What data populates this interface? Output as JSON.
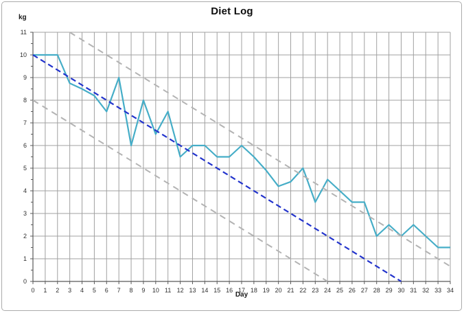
{
  "chart_data": {
    "type": "line",
    "title": "Diet Log",
    "xlabel": "Day",
    "ylabel": "kg",
    "xlim": [
      0,
      34
    ],
    "ylim": [
      0,
      11
    ],
    "grid": true,
    "legend": "none",
    "x_ticks": [
      0,
      1,
      2,
      3,
      4,
      5,
      6,
      7,
      8,
      9,
      10,
      11,
      12,
      13,
      14,
      15,
      16,
      17,
      18,
      19,
      20,
      21,
      22,
      23,
      24,
      25,
      26,
      27,
      28,
      29,
      30,
      31,
      32,
      33,
      34
    ],
    "y_ticks": [
      0,
      1,
      2,
      3,
      4,
      5,
      6,
      7,
      8,
      9,
      10,
      11
    ],
    "colors": {
      "weight_line": "#45adc7",
      "trend_line": "#2233cc",
      "bound_lines": "#b3b3b3",
      "grid": "#a0a0a0",
      "axis": "#595959",
      "text": "#2e2e2e"
    },
    "series": [
      {
        "name": "weight",
        "style": "solid",
        "color_key": "weight_line",
        "width": 2.2,
        "x": [
          0,
          1,
          2,
          3,
          4,
          5,
          6,
          7,
          8,
          9,
          10,
          11,
          12,
          13,
          14,
          15,
          16,
          17,
          18,
          19,
          20,
          21,
          22,
          23,
          24,
          25,
          26,
          27,
          28,
          29,
          30,
          31,
          32,
          33,
          34
        ],
        "values": [
          10,
          10,
          10,
          8.75,
          8.5,
          8.2,
          7.5,
          9,
          6,
          8,
          6.5,
          7.5,
          5.5,
          6,
          6,
          5.5,
          5.5,
          6,
          5.5,
          4.9,
          4.2,
          4.4,
          5,
          3.5,
          4.5,
          4,
          3.5,
          3.5,
          2,
          2.5,
          2,
          2.5,
          2,
          1.5,
          1.5
        ]
      },
      {
        "name": "trend",
        "style": "dashed",
        "color_key": "trend_line",
        "width": 2.2,
        "dash": "8 5",
        "points": [
          [
            0,
            10
          ],
          [
            30,
            0
          ]
        ]
      },
      {
        "name": "upper-bound",
        "style": "dashed",
        "color_key": "bound_lines",
        "width": 2,
        "dash": "9 7",
        "points": [
          [
            3,
            11
          ],
          [
            34,
            0.667
          ]
        ]
      },
      {
        "name": "lower-bound",
        "style": "dashed",
        "color_key": "bound_lines",
        "width": 2,
        "dash": "9 7",
        "points": [
          [
            0,
            8
          ],
          [
            24,
            0
          ]
        ]
      }
    ]
  }
}
